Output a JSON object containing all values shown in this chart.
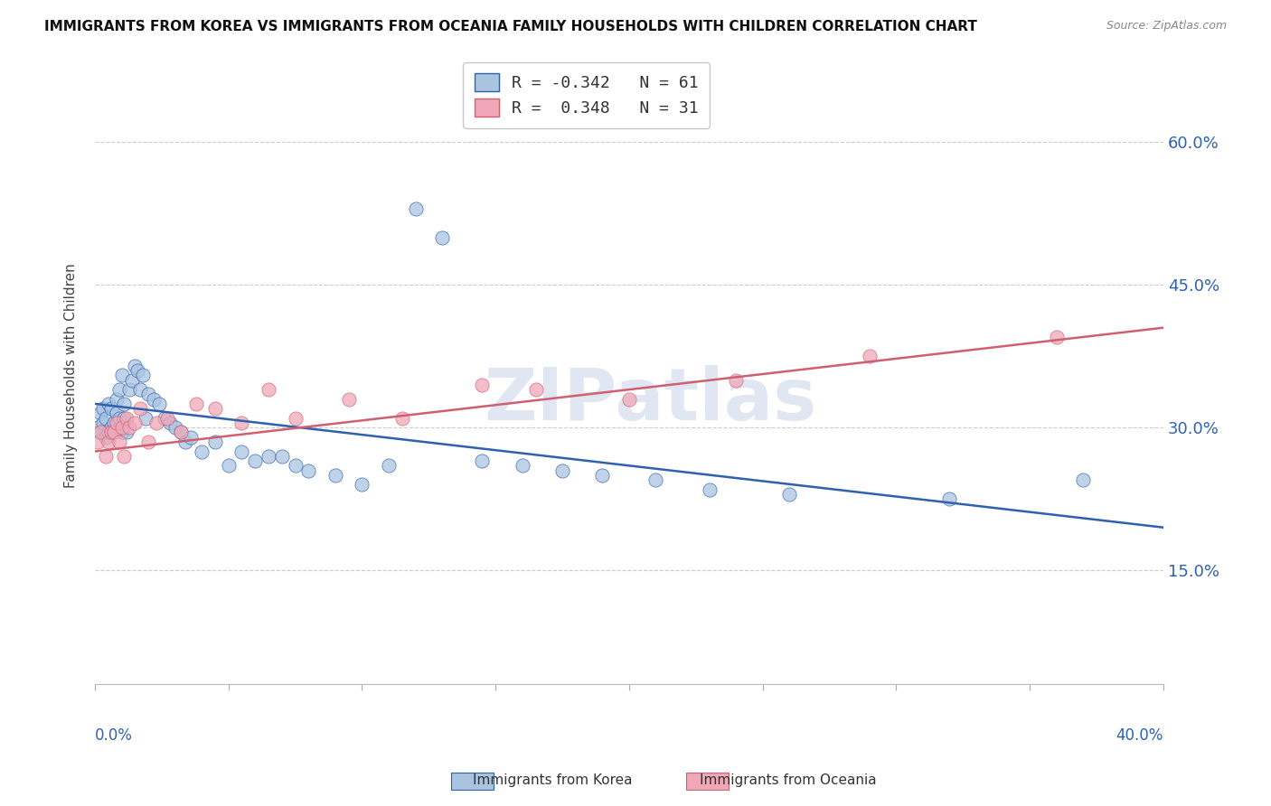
{
  "title": "IMMIGRANTS FROM KOREA VS IMMIGRANTS FROM OCEANIA FAMILY HOUSEHOLDS WITH CHILDREN CORRELATION CHART",
  "source": "Source: ZipAtlas.com",
  "ylabel": "Family Households with Children",
  "ytick_labels": [
    "15.0%",
    "30.0%",
    "45.0%",
    "60.0%"
  ],
  "ytick_values": [
    0.15,
    0.3,
    0.45,
    0.6
  ],
  "xlim": [
    0.0,
    0.4
  ],
  "ylim": [
    0.03,
    0.68
  ],
  "legend_korea": "R = -0.342   N = 61",
  "legend_oceania": "R =  0.348   N = 31",
  "korea_color": "#aac4e0",
  "oceania_color": "#f0a8b8",
  "korea_line_color": "#3060b0",
  "oceania_line_color": "#d06070",
  "watermark": "ZIPatlas",
  "korea_trend": [
    0.325,
    0.195
  ],
  "oceania_trend": [
    0.275,
    0.405
  ],
  "korea_scatter_x": [
    0.001,
    0.002,
    0.002,
    0.003,
    0.003,
    0.004,
    0.004,
    0.005,
    0.005,
    0.006,
    0.006,
    0.007,
    0.007,
    0.008,
    0.008,
    0.009,
    0.009,
    0.01,
    0.01,
    0.011,
    0.011,
    0.012,
    0.013,
    0.014,
    0.015,
    0.016,
    0.017,
    0.018,
    0.019,
    0.02,
    0.022,
    0.024,
    0.026,
    0.028,
    0.03,
    0.032,
    0.034,
    0.036,
    0.04,
    0.045,
    0.05,
    0.055,
    0.06,
    0.065,
    0.07,
    0.075,
    0.08,
    0.09,
    0.1,
    0.11,
    0.12,
    0.13,
    0.145,
    0.16,
    0.175,
    0.19,
    0.21,
    0.23,
    0.26,
    0.32,
    0.37
  ],
  "korea_scatter_y": [
    0.3,
    0.295,
    0.315,
    0.305,
    0.32,
    0.29,
    0.31,
    0.295,
    0.325,
    0.3,
    0.32,
    0.305,
    0.295,
    0.315,
    0.33,
    0.34,
    0.31,
    0.355,
    0.295,
    0.325,
    0.31,
    0.295,
    0.34,
    0.35,
    0.365,
    0.36,
    0.34,
    0.355,
    0.31,
    0.335,
    0.33,
    0.325,
    0.31,
    0.305,
    0.3,
    0.295,
    0.285,
    0.29,
    0.275,
    0.285,
    0.26,
    0.275,
    0.265,
    0.27,
    0.27,
    0.26,
    0.255,
    0.25,
    0.24,
    0.26,
    0.53,
    0.5,
    0.265,
    0.26,
    0.255,
    0.25,
    0.245,
    0.235,
    0.23,
    0.225,
    0.245
  ],
  "oceania_scatter_x": [
    0.001,
    0.002,
    0.004,
    0.005,
    0.006,
    0.007,
    0.008,
    0.009,
    0.01,
    0.011,
    0.012,
    0.013,
    0.015,
    0.017,
    0.02,
    0.023,
    0.027,
    0.032,
    0.038,
    0.045,
    0.055,
    0.065,
    0.075,
    0.095,
    0.115,
    0.145,
    0.165,
    0.2,
    0.24,
    0.29,
    0.36
  ],
  "oceania_scatter_y": [
    0.285,
    0.295,
    0.27,
    0.285,
    0.295,
    0.295,
    0.305,
    0.285,
    0.3,
    0.27,
    0.31,
    0.3,
    0.305,
    0.32,
    0.285,
    0.305,
    0.31,
    0.295,
    0.325,
    0.32,
    0.305,
    0.34,
    0.31,
    0.33,
    0.31,
    0.345,
    0.34,
    0.33,
    0.35,
    0.375,
    0.395
  ]
}
